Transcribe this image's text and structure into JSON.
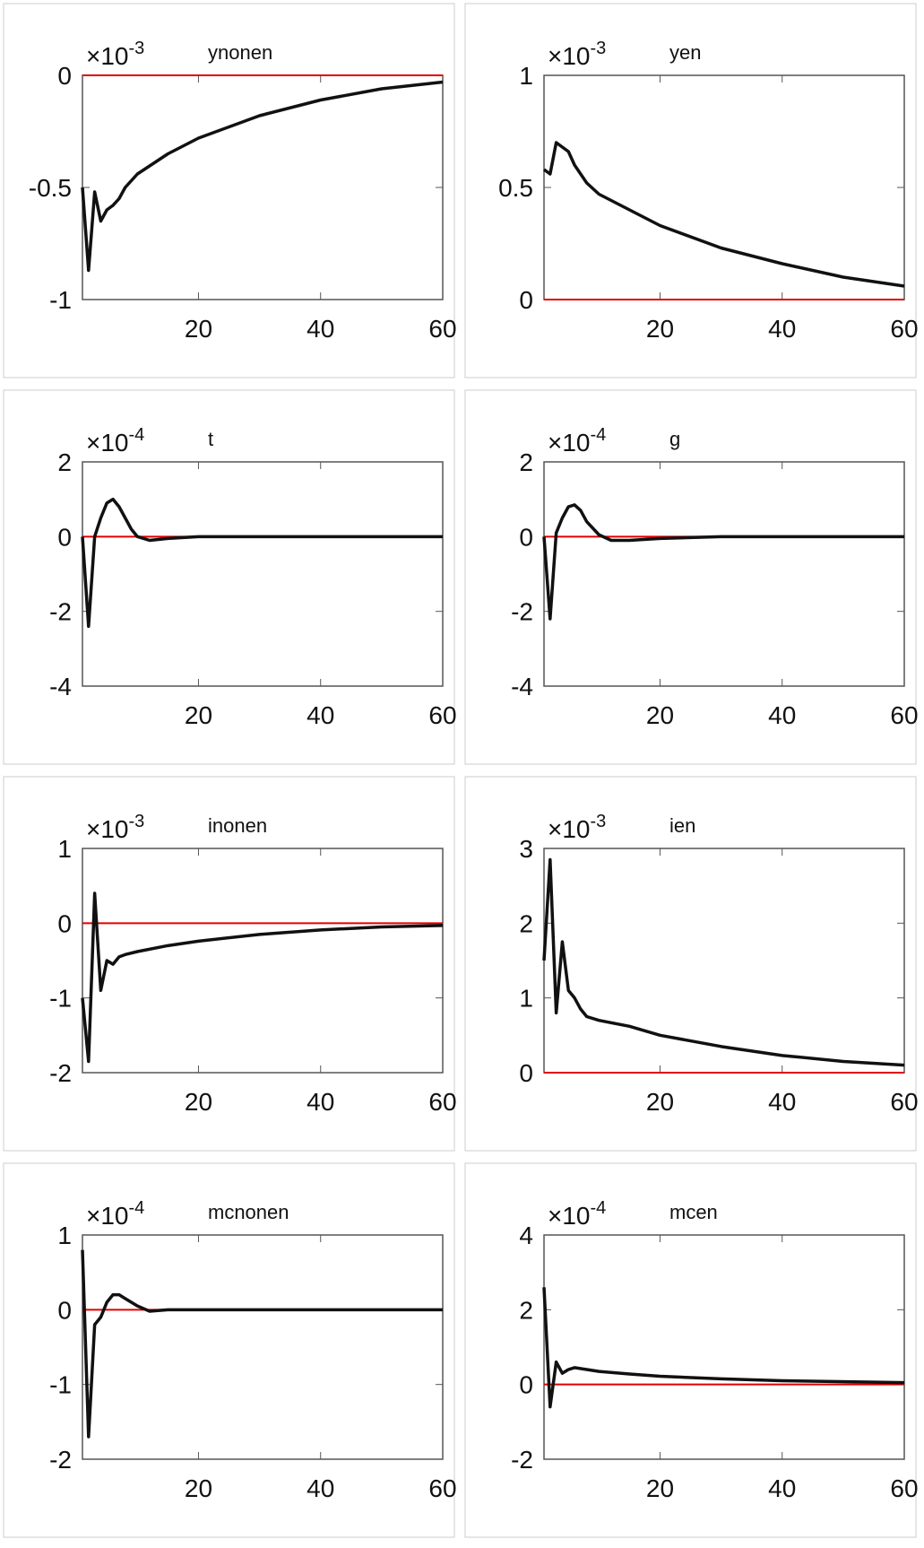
{
  "chart_data": [
    {
      "type": "line",
      "title": "ynonen",
      "scale_label": "×10",
      "scale_exponent": "-3",
      "xlim": [
        1,
        60
      ],
      "xticks": [
        20,
        40,
        60
      ],
      "ylim": [
        -1,
        0
      ],
      "yticks": [
        -1,
        -0.5,
        0
      ],
      "reference_line": 0,
      "reference_color": "#e00000",
      "x": [
        1,
        2,
        3,
        4,
        5,
        6,
        7,
        8,
        10,
        15,
        20,
        30,
        40,
        50,
        60
      ],
      "series": [
        {
          "color": "#111111",
          "values": [
            -0.5,
            -0.87,
            -0.52,
            -0.65,
            -0.6,
            -0.58,
            -0.55,
            -0.5,
            -0.44,
            -0.35,
            -0.28,
            -0.18,
            -0.11,
            -0.06,
            -0.03
          ]
        }
      ]
    },
    {
      "type": "line",
      "title": "yen",
      "scale_label": "×10",
      "scale_exponent": "-3",
      "xlim": [
        1,
        60
      ],
      "xticks": [
        20,
        40,
        60
      ],
      "ylim": [
        0,
        1
      ],
      "yticks": [
        0,
        0.5,
        1
      ],
      "reference_line": 0,
      "reference_color": "#e00000",
      "x": [
        1,
        2,
        3,
        4,
        5,
        6,
        8,
        10,
        15,
        20,
        30,
        40,
        50,
        60
      ],
      "series": [
        {
          "color": "#111111",
          "values": [
            0.58,
            0.56,
            0.7,
            0.68,
            0.66,
            0.6,
            0.52,
            0.47,
            0.4,
            0.33,
            0.23,
            0.16,
            0.1,
            0.06
          ]
        }
      ]
    },
    {
      "type": "line",
      "title": "t",
      "scale_label": "×10",
      "scale_exponent": "-4",
      "xlim": [
        1,
        60
      ],
      "xticks": [
        20,
        40,
        60
      ],
      "ylim": [
        -4,
        2
      ],
      "yticks": [
        -4,
        -2,
        0,
        2
      ],
      "reference_line": 0,
      "reference_color": "#e00000",
      "x": [
        1,
        2,
        3,
        4,
        5,
        6,
        7,
        8,
        9,
        10,
        12,
        15,
        20,
        30,
        40,
        60
      ],
      "series": [
        {
          "color": "#111111",
          "values": [
            0,
            -2.4,
            0,
            0.5,
            0.9,
            1.0,
            0.8,
            0.5,
            0.2,
            0,
            -0.1,
            -0.05,
            0,
            0,
            0,
            0
          ]
        }
      ]
    },
    {
      "type": "line",
      "title": "g",
      "scale_label": "×10",
      "scale_exponent": "-4",
      "xlim": [
        1,
        60
      ],
      "xticks": [
        20,
        40,
        60
      ],
      "ylim": [
        -4,
        2
      ],
      "yticks": [
        -4,
        -2,
        0,
        2
      ],
      "reference_line": 0,
      "reference_color": "#e00000",
      "x": [
        1,
        2,
        3,
        4,
        5,
        6,
        7,
        8,
        10,
        12,
        15,
        20,
        30,
        60
      ],
      "series": [
        {
          "color": "#111111",
          "values": [
            0,
            -2.2,
            0.1,
            0.5,
            0.8,
            0.85,
            0.7,
            0.4,
            0.05,
            -0.1,
            -0.1,
            -0.05,
            0,
            0
          ]
        }
      ]
    },
    {
      "type": "line",
      "title": "inonen",
      "scale_label": "×10",
      "scale_exponent": "-3",
      "xlim": [
        1,
        60
      ],
      "xticks": [
        20,
        40,
        60
      ],
      "ylim": [
        -2,
        1
      ],
      "yticks": [
        -2,
        -1,
        0,
        1
      ],
      "reference_line": 0,
      "reference_color": "#e00000",
      "x": [
        1,
        2,
        3,
        4,
        5,
        6,
        7,
        8,
        10,
        15,
        20,
        30,
        40,
        50,
        60
      ],
      "series": [
        {
          "color": "#111111",
          "values": [
            -1,
            -1.85,
            0.4,
            -0.9,
            -0.5,
            -0.55,
            -0.45,
            -0.42,
            -0.38,
            -0.3,
            -0.24,
            -0.15,
            -0.09,
            -0.05,
            -0.03
          ]
        }
      ]
    },
    {
      "type": "line",
      "title": "ien",
      "scale_label": "×10",
      "scale_exponent": "-3",
      "xlim": [
        1,
        60
      ],
      "xticks": [
        20,
        40,
        60
      ],
      "ylim": [
        0,
        3
      ],
      "yticks": [
        0,
        1,
        2,
        3
      ],
      "reference_line": 0,
      "reference_color": "#e00000",
      "x": [
        1,
        2,
        3,
        4,
        5,
        6,
        7,
        8,
        10,
        15,
        20,
        30,
        40,
        50,
        60
      ],
      "series": [
        {
          "color": "#111111",
          "values": [
            1.5,
            2.85,
            0.8,
            1.75,
            1.1,
            1.0,
            0.85,
            0.75,
            0.7,
            0.62,
            0.5,
            0.35,
            0.23,
            0.15,
            0.1
          ]
        }
      ]
    },
    {
      "type": "line",
      "title": "mcnonen",
      "scale_label": "×10",
      "scale_exponent": "-4",
      "xlim": [
        1,
        60
      ],
      "xticks": [
        20,
        40,
        60
      ],
      "ylim": [
        -2,
        1
      ],
      "yticks": [
        -2,
        -1,
        0,
        1
      ],
      "reference_line": 0,
      "reference_color": "#e00000",
      "x": [
        1,
        2,
        3,
        4,
        5,
        6,
        7,
        8,
        10,
        12,
        15,
        20,
        60
      ],
      "series": [
        {
          "color": "#111111",
          "values": [
            0.8,
            -1.7,
            -0.2,
            -0.1,
            0.1,
            0.2,
            0.2,
            0.15,
            0.05,
            -0.02,
            0,
            0,
            0
          ]
        }
      ]
    },
    {
      "type": "line",
      "title": "mcen",
      "scale_label": "×10",
      "scale_exponent": "-4",
      "xlim": [
        1,
        60
      ],
      "xticks": [
        20,
        40,
        60
      ],
      "ylim": [
        -2,
        4
      ],
      "yticks": [
        -2,
        0,
        2,
        4
      ],
      "reference_line": 0,
      "reference_color": "#e00000",
      "x": [
        1,
        2,
        3,
        4,
        5,
        6,
        8,
        10,
        15,
        20,
        30,
        40,
        60
      ],
      "series": [
        {
          "color": "#111111",
          "values": [
            2.6,
            -0.6,
            0.6,
            0.3,
            0.4,
            0.45,
            0.4,
            0.35,
            0.28,
            0.22,
            0.15,
            0.1,
            0.05
          ]
        }
      ]
    }
  ]
}
